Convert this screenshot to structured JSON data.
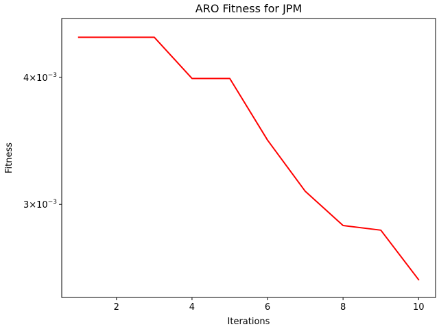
{
  "chart_data": {
    "type": "line",
    "title": "ARO Fitness for JPM",
    "xlabel": "Iterations",
    "ylabel": "Fitness",
    "y_scale": "log",
    "grid": false,
    "x": [
      1,
      2,
      3,
      4,
      5,
      6,
      7,
      8,
      9,
      10
    ],
    "series": [
      {
        "color": "#ff0000",
        "values": [
          0.00438,
          0.00438,
          0.00438,
          0.00399,
          0.00399,
          0.00347,
          0.00309,
          0.00286,
          0.00283,
          0.00253
        ]
      }
    ],
    "xlim": [
      0.55,
      10.45
    ],
    "ylim": [
      0.00243,
      0.00457
    ],
    "x_ticks": [
      {
        "value": 2,
        "label": "2"
      },
      {
        "value": 4,
        "label": "4"
      },
      {
        "value": 6,
        "label": "6"
      },
      {
        "value": 8,
        "label": "8"
      },
      {
        "value": 10,
        "label": "10"
      }
    ],
    "y_ticks": [
      {
        "value": 0.003,
        "mantissa": "3",
        "base": "10",
        "exponent": "−3"
      },
      {
        "value": 0.004,
        "mantissa": "4",
        "base": "10",
        "exponent": "−3"
      }
    ]
  }
}
